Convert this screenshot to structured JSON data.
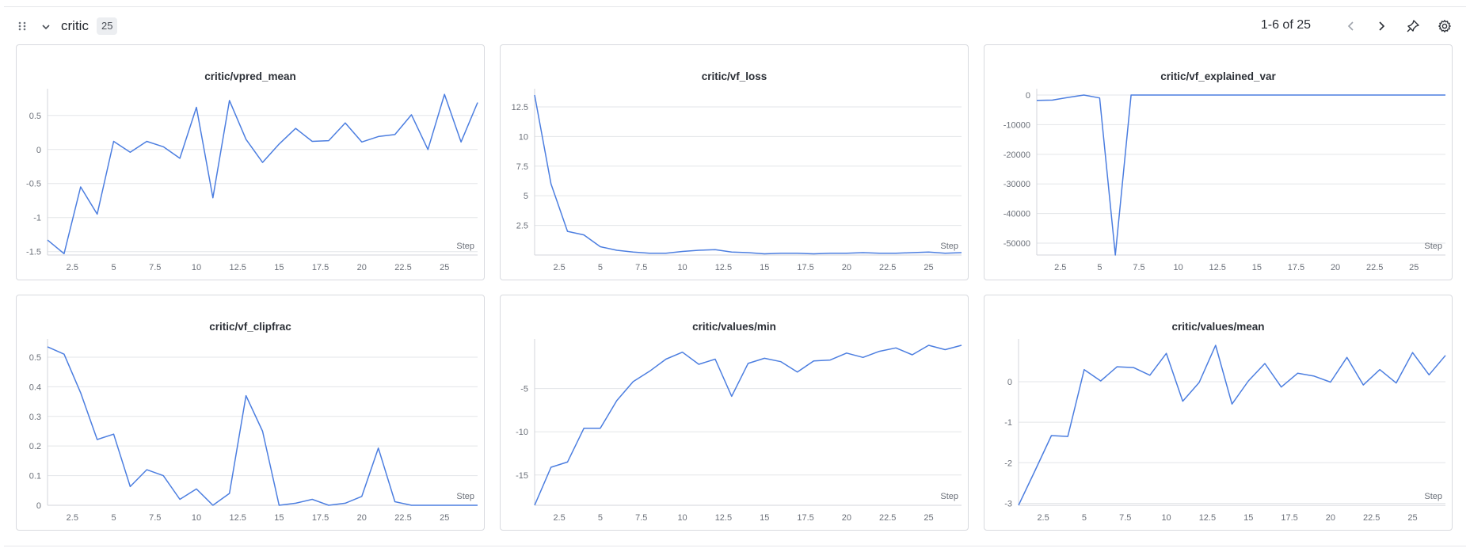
{
  "section": {
    "title": "critic",
    "count": "25",
    "pagination": "1-6 of 25",
    "icons": [
      "drag-handle-icon",
      "chevron-down-icon",
      "chevron-left-icon",
      "chevron-right-icon",
      "pin-icon",
      "gear-icon",
      "more-icon"
    ]
  },
  "accent_color": "#4c7ee0",
  "chart_data": [
    {
      "type": "line",
      "title": "critic/vpred_mean",
      "xlabel": "Step",
      "x": [
        1,
        2,
        3,
        4,
        5,
        6,
        7,
        8,
        9,
        10,
        11,
        12,
        13,
        14,
        15,
        16,
        17,
        18,
        19,
        20,
        21,
        22,
        23,
        24,
        25,
        26,
        27
      ],
      "values": [
        -1.33,
        -1.53,
        -0.55,
        -0.95,
        0.12,
        -0.04,
        0.12,
        0.04,
        -0.13,
        0.62,
        -0.71,
        0.72,
        0.15,
        -0.19,
        0.08,
        0.31,
        0.12,
        0.13,
        0.39,
        0.11,
        0.19,
        0.22,
        0.51,
        0.0,
        0.81,
        0.11,
        0.69
      ],
      "xlim": [
        1,
        27
      ],
      "ylim": [
        -1.55,
        0.8
      ],
      "xticks": [
        2.5,
        5,
        7.5,
        10,
        12.5,
        15,
        17.5,
        20,
        22.5,
        25
      ],
      "xtick_labels": [
        "2.5",
        "5",
        "7.5",
        "10",
        "12.5",
        "15",
        "17.5",
        "20",
        "22.5",
        "25"
      ],
      "yticks": [
        -1.5,
        -1,
        -0.5,
        0,
        0.5
      ],
      "ytick_labels": [
        "-1.5",
        "-1",
        "-0.5",
        "0",
        "0.5"
      ]
    },
    {
      "type": "line",
      "title": "critic/vf_loss",
      "xlabel": "Step",
      "x": [
        1,
        2,
        3,
        4,
        5,
        6,
        7,
        8,
        9,
        10,
        11,
        12,
        13,
        14,
        15,
        16,
        17,
        18,
        19,
        20,
        21,
        22,
        23,
        24,
        25,
        26,
        27
      ],
      "values": [
        13.5,
        6.0,
        2.0,
        1.7,
        0.7,
        0.4,
        0.25,
        0.15,
        0.15,
        0.3,
        0.4,
        0.45,
        0.25,
        0.2,
        0.1,
        0.15,
        0.15,
        0.1,
        0.15,
        0.15,
        0.2,
        0.15,
        0.15,
        0.2,
        0.25,
        0.15,
        0.2
      ],
      "xlim": [
        1,
        27
      ],
      "ylim": [
        0,
        13.5
      ],
      "xticks": [
        2.5,
        5,
        7.5,
        10,
        12.5,
        15,
        17.5,
        20,
        22.5,
        25
      ],
      "xtick_labels": [
        "2.5",
        "5",
        "7.5",
        "10",
        "12.5",
        "15",
        "17.5",
        "20",
        "22.5",
        "25"
      ],
      "yticks": [
        2.5,
        5,
        7.5,
        10,
        12.5
      ],
      "ytick_labels": [
        "2.5",
        "5",
        "7.5",
        "10",
        "12.5"
      ]
    },
    {
      "type": "line",
      "title": "critic/vf_explained_var",
      "xlabel": "Step",
      "x": [
        1,
        2,
        3,
        4,
        5,
        6,
        7,
        8,
        9,
        10,
        11,
        12,
        13,
        14,
        15,
        16,
        17,
        18,
        19,
        20,
        21,
        22,
        23,
        24,
        25,
        26,
        27
      ],
      "values": [
        -1800,
        -1700,
        -800,
        0,
        -1000,
        -54000,
        0,
        0,
        0,
        0,
        0,
        0,
        0,
        0,
        0,
        0,
        0,
        0,
        0,
        0,
        0,
        0,
        0,
        0,
        0,
        0,
        0
      ],
      "xlim": [
        1,
        27
      ],
      "ylim": [
        -54000,
        0
      ],
      "xticks": [
        2.5,
        5,
        7.5,
        10,
        12.5,
        15,
        17.5,
        20,
        22.5,
        25
      ],
      "xtick_labels": [
        "2.5",
        "5",
        "7.5",
        "10",
        "12.5",
        "15",
        "17.5",
        "20",
        "22.5",
        "25"
      ],
      "yticks": [
        -50000,
        -40000,
        -30000,
        -20000,
        -10000,
        0
      ],
      "ytick_labels": [
        "-50000",
        "-40000",
        "-30000",
        "-20000",
        "-10000",
        "0"
      ]
    },
    {
      "type": "line",
      "title": "critic/vf_clipfrac",
      "xlabel": "Step",
      "x": [
        1,
        2,
        3,
        4,
        5,
        6,
        7,
        8,
        9,
        10,
        11,
        12,
        13,
        14,
        15,
        16,
        17,
        18,
        19,
        20,
        21,
        22,
        23,
        24,
        25,
        26,
        27
      ],
      "values": [
        0.535,
        0.51,
        0.38,
        0.222,
        0.24,
        0.063,
        0.12,
        0.1,
        0.02,
        0.055,
        0.0,
        0.04,
        0.37,
        0.25,
        0.0,
        0.007,
        0.02,
        0.0,
        0.007,
        0.03,
        0.193,
        0.012,
        0.0,
        0.0,
        0.0,
        0.0,
        0.0
      ],
      "xlim": [
        1,
        27
      ],
      "ylim": [
        0,
        0.54
      ],
      "xticks": [
        2.5,
        5,
        7.5,
        10,
        12.5,
        15,
        17.5,
        20,
        22.5,
        25
      ],
      "xtick_labels": [
        "2.5",
        "5",
        "7.5",
        "10",
        "12.5",
        "15",
        "17.5",
        "20",
        "22.5",
        "25"
      ],
      "yticks": [
        0,
        0.1,
        0.2,
        0.3,
        0.4,
        0.5
      ],
      "ytick_labels": [
        "0",
        "0.1",
        "0.2",
        "0.3",
        "0.4",
        "0.5"
      ]
    },
    {
      "type": "line",
      "title": "critic/values/min",
      "xlabel": "Step",
      "x": [
        1,
        2,
        3,
        4,
        5,
        6,
        7,
        8,
        9,
        10,
        11,
        12,
        13,
        14,
        15,
        16,
        17,
        18,
        19,
        20,
        21,
        22,
        23,
        24,
        25,
        26,
        27
      ],
      "values": [
        -18.5,
        -14.1,
        -13.5,
        -9.6,
        -9.6,
        -6.4,
        -4.2,
        -3.0,
        -1.6,
        -0.8,
        -2.2,
        -1.6,
        -5.9,
        -2.1,
        -1.5,
        -1.9,
        -3.1,
        -1.8,
        -1.7,
        -0.9,
        -1.4,
        -0.7,
        -0.3,
        -1.1,
        0.0,
        -0.5,
        0.0
      ],
      "xlim": [
        1,
        27
      ],
      "ylim": [
        -18.5,
        0
      ],
      "xticks": [
        2.5,
        5,
        7.5,
        10,
        12.5,
        15,
        17.5,
        20,
        22.5,
        25
      ],
      "xtick_labels": [
        "2.5",
        "5",
        "7.5",
        "10",
        "12.5",
        "15",
        "17.5",
        "20",
        "22.5",
        "25"
      ],
      "yticks": [
        -15,
        -10,
        -5
      ],
      "ytick_labels": [
        "-15",
        "-10",
        "-5"
      ]
    },
    {
      "type": "line",
      "title": "critic/values/mean",
      "xlabel": "Step",
      "x": [
        1,
        2,
        3,
        4,
        5,
        6,
        7,
        8,
        9,
        10,
        11,
        12,
        13,
        14,
        15,
        16,
        17,
        18,
        19,
        20,
        21,
        22,
        23,
        24,
        25,
        26,
        27
      ],
      "values": [
        -3.05,
        -2.2,
        -1.33,
        -1.35,
        0.3,
        0.02,
        0.37,
        0.35,
        0.16,
        0.7,
        -0.48,
        -0.02,
        0.9,
        -0.55,
        0.02,
        0.45,
        -0.13,
        0.21,
        0.14,
        -0.01,
        0.6,
        -0.08,
        0.3,
        -0.03,
        0.72,
        0.17,
        0.65
      ],
      "xlim": [
        1,
        27
      ],
      "ylim": [
        -3.05,
        0.9
      ],
      "xticks": [
        2.5,
        5,
        7.5,
        10,
        12.5,
        15,
        17.5,
        20,
        22.5,
        25
      ],
      "xtick_labels": [
        "2.5",
        "5",
        "7.5",
        "10",
        "12.5",
        "15",
        "17.5",
        "20",
        "22.5",
        "25"
      ],
      "yticks": [
        -3,
        -2,
        -1,
        0
      ],
      "ytick_labels": [
        "-3",
        "-2",
        "-1",
        "0"
      ]
    }
  ]
}
